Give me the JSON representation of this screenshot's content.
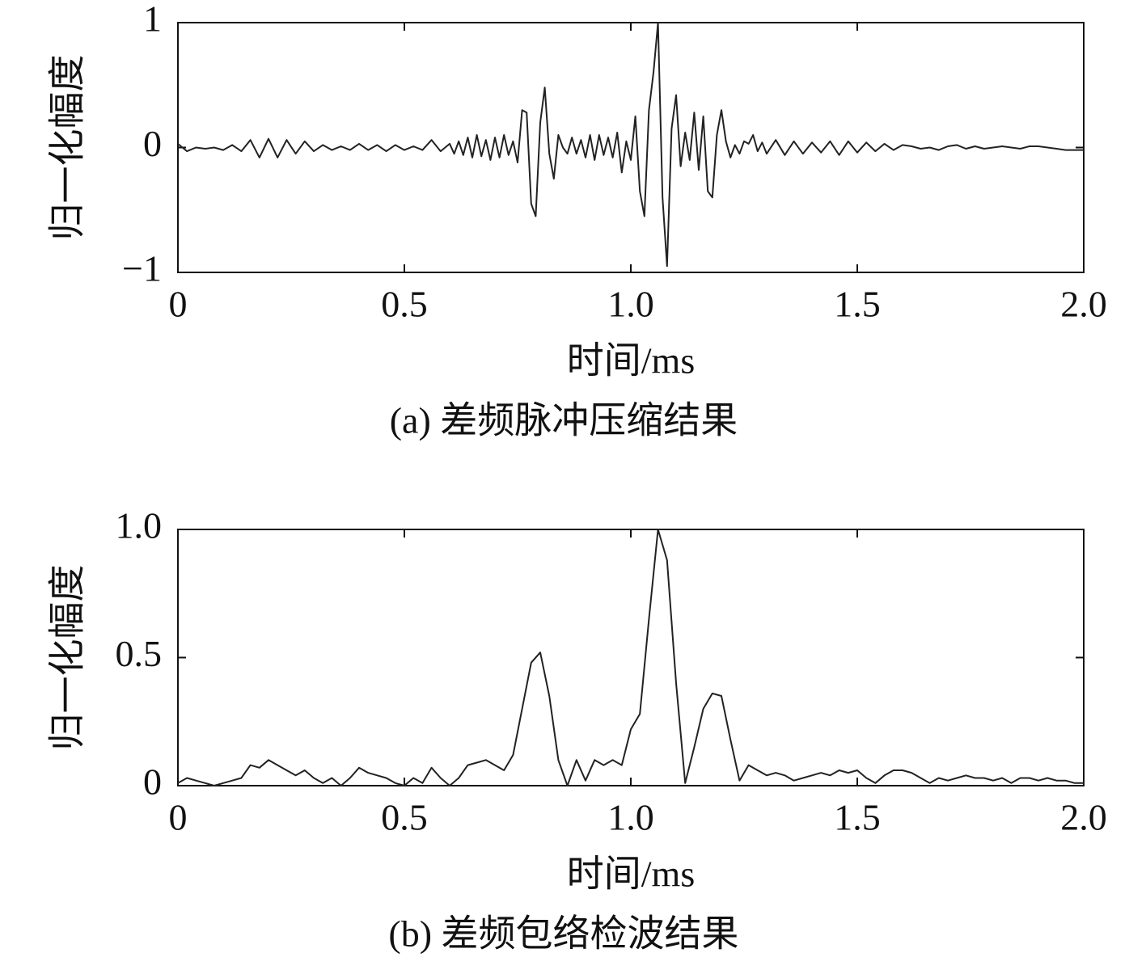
{
  "chart_data": [
    {
      "type": "line",
      "title": "(a) 差频脉冲压缩结果",
      "xlabel": "时间/ms",
      "ylabel": "归一化幅度",
      "color": "#222222",
      "xlim": [
        0,
        2
      ],
      "ylim": [
        -1,
        1
      ],
      "xticks": [
        0,
        0.5,
        {
          "value": 1,
          "label": "1.0"
        },
        1.5,
        {
          "value": 2,
          "label": "2.0"
        }
      ],
      "yticks": [
        {
          "value": -1,
          "label": "−1"
        },
        0,
        1
      ],
      "x": [
        0,
        0.02,
        0.04,
        0.06,
        0.08,
        0.1,
        0.12,
        0.14,
        0.16,
        0.18,
        0.2,
        0.22,
        0.24,
        0.26,
        0.28,
        0.3,
        0.32,
        0.34,
        0.36,
        0.38,
        0.4,
        0.42,
        0.44,
        0.46,
        0.48,
        0.5,
        0.52,
        0.54,
        0.56,
        0.58,
        0.6,
        0.61,
        0.62,
        0.63,
        0.64,
        0.65,
        0.66,
        0.67,
        0.68,
        0.69,
        0.7,
        0.71,
        0.72,
        0.73,
        0.74,
        0.75,
        0.76,
        0.77,
        0.78,
        0.79,
        0.8,
        0.81,
        0.82,
        0.83,
        0.84,
        0.85,
        0.86,
        0.87,
        0.88,
        0.89,
        0.9,
        0.91,
        0.92,
        0.93,
        0.94,
        0.95,
        0.96,
        0.97,
        0.98,
        0.99,
        1,
        1.01,
        1.02,
        1.03,
        1.04,
        1.05,
        1.06,
        1.07,
        1.08,
        1.09,
        1.1,
        1.11,
        1.12,
        1.13,
        1.14,
        1.15,
        1.16,
        1.17,
        1.18,
        1.19,
        1.2,
        1.21,
        1.22,
        1.23,
        1.24,
        1.25,
        1.26,
        1.27,
        1.28,
        1.29,
        1.3,
        1.32,
        1.34,
        1.36,
        1.38,
        1.4,
        1.42,
        1.44,
        1.46,
        1.48,
        1.5,
        1.52,
        1.54,
        1.56,
        1.58,
        1.6,
        1.62,
        1.64,
        1.66,
        1.68,
        1.7,
        1.72,
        1.74,
        1.76,
        1.78,
        1.8,
        1.82,
        1.84,
        1.86,
        1.88,
        1.9,
        1.92,
        1.94,
        1.96,
        1.98,
        2
      ],
      "values": [
        0.03,
        -0.03,
        0,
        -0.01,
        0,
        -0.02,
        0.02,
        -0.03,
        0.06,
        -0.08,
        0.07,
        -0.08,
        0.06,
        -0.05,
        0.05,
        -0.03,
        0.02,
        -0.02,
        0.01,
        -0.02,
        0.03,
        -0.02,
        0.02,
        -0.03,
        0.02,
        -0.02,
        0.01,
        -0.02,
        0.06,
        -0.03,
        0.03,
        -0.05,
        0.05,
        -0.06,
        0.08,
        -0.08,
        0.1,
        -0.07,
        0.06,
        -0.1,
        0.08,
        -0.08,
        0.1,
        -0.06,
        0.05,
        -0.12,
        0.3,
        0.28,
        -0.45,
        -0.55,
        0.2,
        0.48,
        -0.05,
        -0.25,
        0.1,
        0,
        -0.05,
        0.08,
        -0.05,
        0.06,
        -0.08,
        0.1,
        -0.1,
        0.1,
        -0.06,
        0.08,
        -0.08,
        0.12,
        -0.2,
        0.05,
        -0.1,
        0.25,
        -0.35,
        -0.55,
        0.3,
        0.6,
        1,
        -0.4,
        -0.95,
        0.15,
        0.42,
        -0.15,
        0.12,
        -0.1,
        0.28,
        -0.18,
        0.25,
        -0.35,
        -0.4,
        0.1,
        0.3,
        0.05,
        -0.08,
        0.02,
        -0.05,
        0.05,
        0.03,
        0.1,
        -0.03,
        0.04,
        -0.05,
        0.06,
        -0.06,
        0.05,
        -0.05,
        0.04,
        -0.04,
        0.05,
        -0.06,
        0.05,
        -0.04,
        0.04,
        -0.03,
        0.03,
        -0.02,
        0.02,
        0.01,
        -0.01,
        0,
        -0.02,
        0.01,
        0.02,
        -0.01,
        0.01,
        -0.01,
        0,
        0.01,
        0,
        -0.01,
        0.01,
        0.01,
        0,
        -0.01,
        -0.02,
        -0.02,
        -0.02
      ]
    },
    {
      "type": "line",
      "title": "(b) 差频包络检波结果",
      "xlabel": "时间/ms",
      "ylabel": "归一化幅度",
      "color": "#222222",
      "xlim": [
        0,
        2
      ],
      "ylim": [
        0,
        1
      ],
      "xticks": [
        0,
        0.5,
        {
          "value": 1,
          "label": "1.0"
        },
        1.5,
        {
          "value": 2,
          "label": "2.0"
        }
      ],
      "yticks": [
        0,
        0.5,
        {
          "value": 1,
          "label": "1.0"
        }
      ],
      "x": [
        0,
        0.02,
        0.04,
        0.06,
        0.08,
        0.1,
        0.12,
        0.14,
        0.16,
        0.18,
        0.2,
        0.22,
        0.24,
        0.26,
        0.28,
        0.3,
        0.32,
        0.34,
        0.36,
        0.38,
        0.4,
        0.42,
        0.44,
        0.46,
        0.48,
        0.5,
        0.52,
        0.54,
        0.56,
        0.58,
        0.6,
        0.62,
        0.64,
        0.66,
        0.68,
        0.7,
        0.72,
        0.74,
        0.76,
        0.78,
        0.8,
        0.82,
        0.84,
        0.86,
        0.88,
        0.9,
        0.92,
        0.94,
        0.96,
        0.98,
        1,
        1.02,
        1.04,
        1.06,
        1.08,
        1.1,
        1.12,
        1.14,
        1.16,
        1.18,
        1.2,
        1.22,
        1.24,
        1.26,
        1.28,
        1.3,
        1.32,
        1.34,
        1.36,
        1.38,
        1.4,
        1.42,
        1.44,
        1.46,
        1.48,
        1.5,
        1.52,
        1.54,
        1.56,
        1.58,
        1.6,
        1.62,
        1.64,
        1.66,
        1.68,
        1.7,
        1.72,
        1.74,
        1.76,
        1.78,
        1.8,
        1.82,
        1.84,
        1.86,
        1.88,
        1.9,
        1.92,
        1.94,
        1.96,
        1.98,
        2
      ],
      "values": [
        0.01,
        0.03,
        0.02,
        0.01,
        0,
        0.01,
        0.02,
        0.03,
        0.08,
        0.07,
        0.1,
        0.08,
        0.06,
        0.04,
        0.06,
        0.03,
        0.01,
        0.03,
        0,
        0.03,
        0.07,
        0.05,
        0.04,
        0.03,
        0.01,
        0,
        0.03,
        0.01,
        0.07,
        0.03,
        0,
        0.03,
        0.08,
        0.09,
        0.1,
        0.08,
        0.06,
        0.12,
        0.3,
        0.48,
        0.52,
        0.35,
        0.1,
        0,
        0.1,
        0.02,
        0.1,
        0.08,
        0.1,
        0.08,
        0.22,
        0.28,
        0.65,
        1,
        0.88,
        0.4,
        0.01,
        0.15,
        0.3,
        0.36,
        0.35,
        0.18,
        0.02,
        0.08,
        0.06,
        0.04,
        0.05,
        0.04,
        0.02,
        0.03,
        0.04,
        0.05,
        0.04,
        0.06,
        0.05,
        0.06,
        0.03,
        0.01,
        0.04,
        0.06,
        0.06,
        0.05,
        0.03,
        0.01,
        0.03,
        0.02,
        0.03,
        0.04,
        0.03,
        0.03,
        0.02,
        0.03,
        0.01,
        0.03,
        0.03,
        0.02,
        0.03,
        0.02,
        0.02,
        0.01,
        0.01
      ]
    }
  ]
}
